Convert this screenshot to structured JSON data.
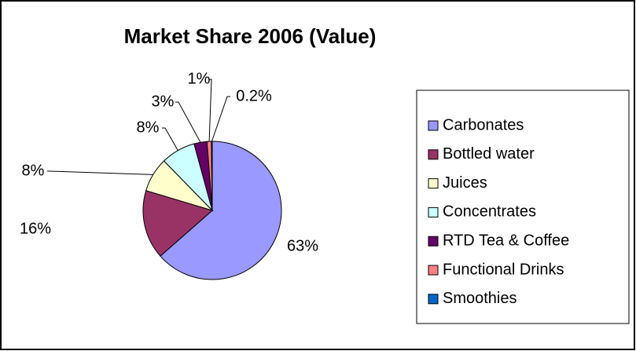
{
  "chart_data": {
    "type": "pie",
    "title": "Market Share 2006 (Value)",
    "categories": [
      "Carbonates",
      "Bottled water",
      "Juices",
      "Concentrates",
      "RTD Tea & Coffee",
      "Functional Drinks",
      "Smoothies"
    ],
    "values": [
      63,
      16,
      8,
      8,
      3,
      1,
      0.2
    ],
    "value_labels": [
      "63%",
      "16%",
      "8%",
      "8%",
      "3%",
      "1%",
      "0.2%"
    ],
    "colors": [
      "#9999ff",
      "#993366",
      "#ffffcc",
      "#ccffff",
      "#660066",
      "#ff8080",
      "#0066cc"
    ],
    "legend": "right"
  }
}
